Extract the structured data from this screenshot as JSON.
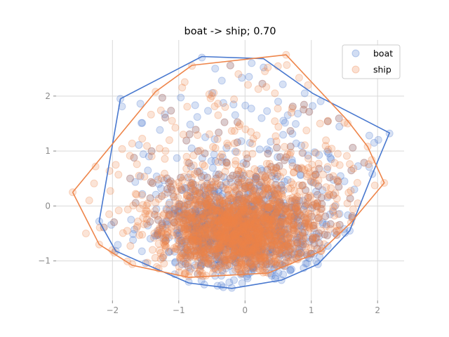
{
  "chart_data": {
    "type": "scatter",
    "title": "boat -> ship; 0.70",
    "xlabel": "",
    "ylabel": "",
    "xlim": [
      -2.85,
      2.4
    ],
    "ylim": [
      -1.72,
      3.02
    ],
    "x_ticks": [
      -2,
      -1,
      0,
      1,
      2
    ],
    "y_ticks": [
      -1,
      0,
      1,
      2
    ],
    "x_tick_labels": [
      "−2",
      "−1",
      "0",
      "1",
      "2"
    ],
    "y_tick_labels": [
      "−1",
      "0",
      "1",
      "2"
    ],
    "grid": true,
    "legend_position": "top-right",
    "series": [
      {
        "name": "boat",
        "color": "#4878cf",
        "marker_alpha": 0.22,
        "points": [
          [
            -0.65,
            2.7
          ],
          [
            0.1,
            2.6
          ],
          [
            0.28,
            2.52
          ],
          [
            -1.88,
            1.95
          ],
          [
            2.18,
            1.32
          ],
          [
            -0.35,
            2.28
          ],
          [
            0.06,
            2.35
          ],
          [
            -1.45,
            0.9
          ],
          [
            -2.2,
            -0.28
          ],
          [
            -1.95,
            -0.82
          ],
          [
            -1.5,
            -1.04
          ],
          [
            -0.85,
            -1.38
          ],
          [
            -0.2,
            -1.49
          ],
          [
            0.55,
            -1.35
          ],
          [
            1.1,
            -1.06
          ],
          [
            1.58,
            -0.45
          ],
          [
            1.92,
            0.58
          ],
          [
            1.02,
            1.82
          ],
          [
            0.9,
            2.05
          ],
          [
            -0.45,
            2.5
          ],
          [
            -0.72,
            1.62
          ],
          [
            0.5,
            1.9
          ],
          [
            1.3,
            0.85
          ],
          [
            -1.3,
            0.4
          ],
          [
            -1.55,
            0.22
          ],
          [
            1.5,
            0.45
          ],
          [
            1.65,
            0.3
          ],
          [
            -1.72,
            -0.25
          ],
          [
            -0.6,
            1.25
          ],
          [
            0.85,
            1.1
          ]
        ],
        "hull": [
          [
            -1.88,
            1.95
          ],
          [
            -0.65,
            2.72
          ],
          [
            0.28,
            2.68
          ],
          [
            1.02,
            2.05
          ],
          [
            2.18,
            1.33
          ],
          [
            1.92,
            0.58
          ],
          [
            1.58,
            -0.45
          ],
          [
            1.1,
            -1.06
          ],
          [
            0.55,
            -1.35
          ],
          [
            -0.2,
            -1.5
          ],
          [
            -0.85,
            -1.4
          ],
          [
            -1.5,
            -1.06
          ],
          [
            -1.95,
            -0.82
          ],
          [
            -2.2,
            -0.28
          ],
          [
            -1.88,
            1.95
          ]
        ]
      },
      {
        "name": "ship",
        "color": "#ee854a",
        "marker_alpha": 0.22,
        "points": [
          [
            0.62,
            2.75
          ],
          [
            -0.8,
            2.55
          ],
          [
            -1.35,
            2.08
          ],
          [
            -2.6,
            0.25
          ],
          [
            2.1,
            0.42
          ],
          [
            1.85,
            1.08
          ],
          [
            -2.2,
            -0.7
          ],
          [
            -1.7,
            -1.06
          ],
          [
            -0.85,
            -1.28
          ],
          [
            0.35,
            -1.22
          ],
          [
            1.15,
            -0.82
          ],
          [
            1.6,
            -0.3
          ],
          [
            -0.1,
            2.4
          ],
          [
            0.3,
            2.45
          ],
          [
            -2.35,
            0.1
          ],
          [
            -1.95,
            0.75
          ],
          [
            1.55,
            1.5
          ],
          [
            0.95,
            2.2
          ],
          [
            -1.1,
            1.55
          ],
          [
            -0.5,
            2.0
          ],
          [
            0.7,
            1.7
          ],
          [
            1.4,
            0.95
          ],
          [
            -1.6,
            0.55
          ],
          [
            -2.05,
            -0.15
          ],
          [
            -1.2,
            1.0
          ],
          [
            0.45,
            2.05
          ],
          [
            -0.3,
            1.8
          ],
          [
            1.7,
            0.05
          ],
          [
            -2.4,
            -0.5
          ],
          [
            1.25,
            1.55
          ]
        ],
        "hull": [
          [
            -2.6,
            0.25
          ],
          [
            -1.35,
            2.08
          ],
          [
            -0.8,
            2.56
          ],
          [
            0.62,
            2.75
          ],
          [
            1.55,
            1.55
          ],
          [
            1.85,
            1.08
          ],
          [
            2.1,
            0.42
          ],
          [
            1.6,
            -0.3
          ],
          [
            1.15,
            -0.82
          ],
          [
            0.35,
            -1.22
          ],
          [
            -0.85,
            -1.3
          ],
          [
            -1.7,
            -1.08
          ],
          [
            -2.2,
            -0.7
          ],
          [
            -2.6,
            0.25
          ]
        ],
        "dense_core": {
          "center": [
            -0.1,
            -0.45
          ],
          "spread": [
            0.55,
            0.42
          ]
        }
      }
    ]
  }
}
